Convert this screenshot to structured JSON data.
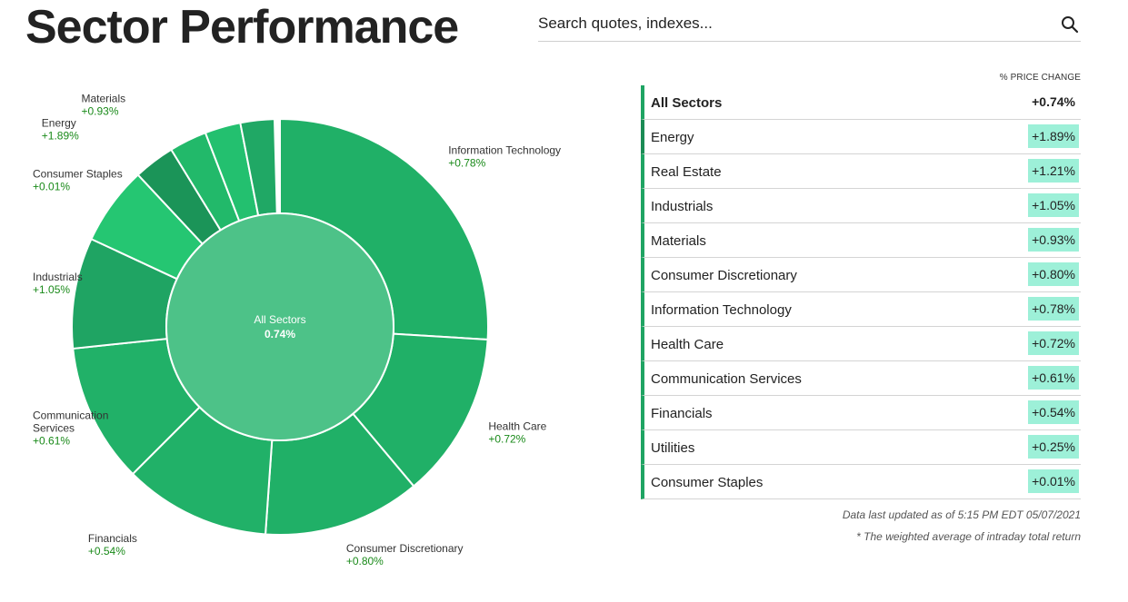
{
  "header": {
    "title": "Sector Performance",
    "search_placeholder": "Search quotes, indexes..."
  },
  "table": {
    "column_header": "% PRICE CHANGE",
    "rows": [
      {
        "name": "All Sectors",
        "value": "+0.74%"
      },
      {
        "name": "Energy",
        "value": "+1.89%"
      },
      {
        "name": "Real Estate",
        "value": "+1.21%"
      },
      {
        "name": "Industrials",
        "value": "+1.05%"
      },
      {
        "name": "Materials",
        "value": "+0.93%"
      },
      {
        "name": "Consumer Discretionary",
        "value": "+0.80%"
      },
      {
        "name": "Information Technology",
        "value": "+0.78%"
      },
      {
        "name": "Health Care",
        "value": "+0.72%"
      },
      {
        "name": "Communication Services",
        "value": "+0.61%"
      },
      {
        "name": "Financials",
        "value": "+0.54%"
      },
      {
        "name": "Utilities",
        "value": "+0.25%"
      },
      {
        "name": "Consumer Staples",
        "value": "+0.01%"
      }
    ]
  },
  "footer": {
    "updated": "Data last updated as of 5:15 PM EDT 05/07/2021",
    "note": "* The weighted average of intraday total return"
  },
  "chart_data": {
    "type": "sunburst",
    "center": {
      "label": "All Sectors",
      "value": "0.74%"
    },
    "segments": [
      {
        "name": "Information Technology",
        "label": "+0.78%",
        "change": 0.78,
        "angle_deg": 93.5,
        "color": "#20b067",
        "label_lines": [
          "Information Technology"
        ]
      },
      {
        "name": "Health Care",
        "label": "+0.72%",
        "change": 0.72,
        "angle_deg": 46.5,
        "color": "#20b067",
        "label_lines": [
          "Health Care"
        ]
      },
      {
        "name": "Consumer Discretionary",
        "label": "+0.80%",
        "change": 0.8,
        "angle_deg": 44,
        "color": "#20b067",
        "label_lines": [
          "Consumer Discretionary"
        ]
      },
      {
        "name": "Financials",
        "label": "+0.54%",
        "change": 0.54,
        "angle_deg": 41,
        "color": "#21b168",
        "label_lines": [
          "Financials"
        ]
      },
      {
        "name": "Communication Services",
        "label": "+0.61%",
        "change": 0.61,
        "angle_deg": 39,
        "color": "#21b168",
        "label_lines": [
          "Communication",
          "Services"
        ]
      },
      {
        "name": "Industrials",
        "label": "+1.05%",
        "change": 1.05,
        "angle_deg": 31,
        "color": "#1fa463",
        "label_lines": [
          "Industrials"
        ]
      },
      {
        "name": "Consumer Staples",
        "label": "+0.01%",
        "change": 0.01,
        "angle_deg": 22,
        "color": "#25c672",
        "label_lines": [
          "Consumer Staples"
        ]
      },
      {
        "name": "Energy",
        "label": "+1.89%",
        "change": 1.89,
        "angle_deg": 11.5,
        "color": "#1b9458",
        "label_lines": [
          "Energy"
        ]
      },
      {
        "name": "Materials",
        "label": "+0.93%",
        "change": 0.93,
        "angle_deg": 10.5,
        "color": "#22b96a",
        "label_lines": [
          "Materials"
        ]
      },
      {
        "name": "Real Estate",
        "label": "+1.21%",
        "change": 1.21,
        "angle_deg": 10,
        "color": "#23c06f",
        "label_lines": []
      },
      {
        "name": "Utilities",
        "label": "+0.25%",
        "change": 0.25,
        "angle_deg": 9.5,
        "color": "#20a865",
        "label_lines": []
      }
    ]
  }
}
